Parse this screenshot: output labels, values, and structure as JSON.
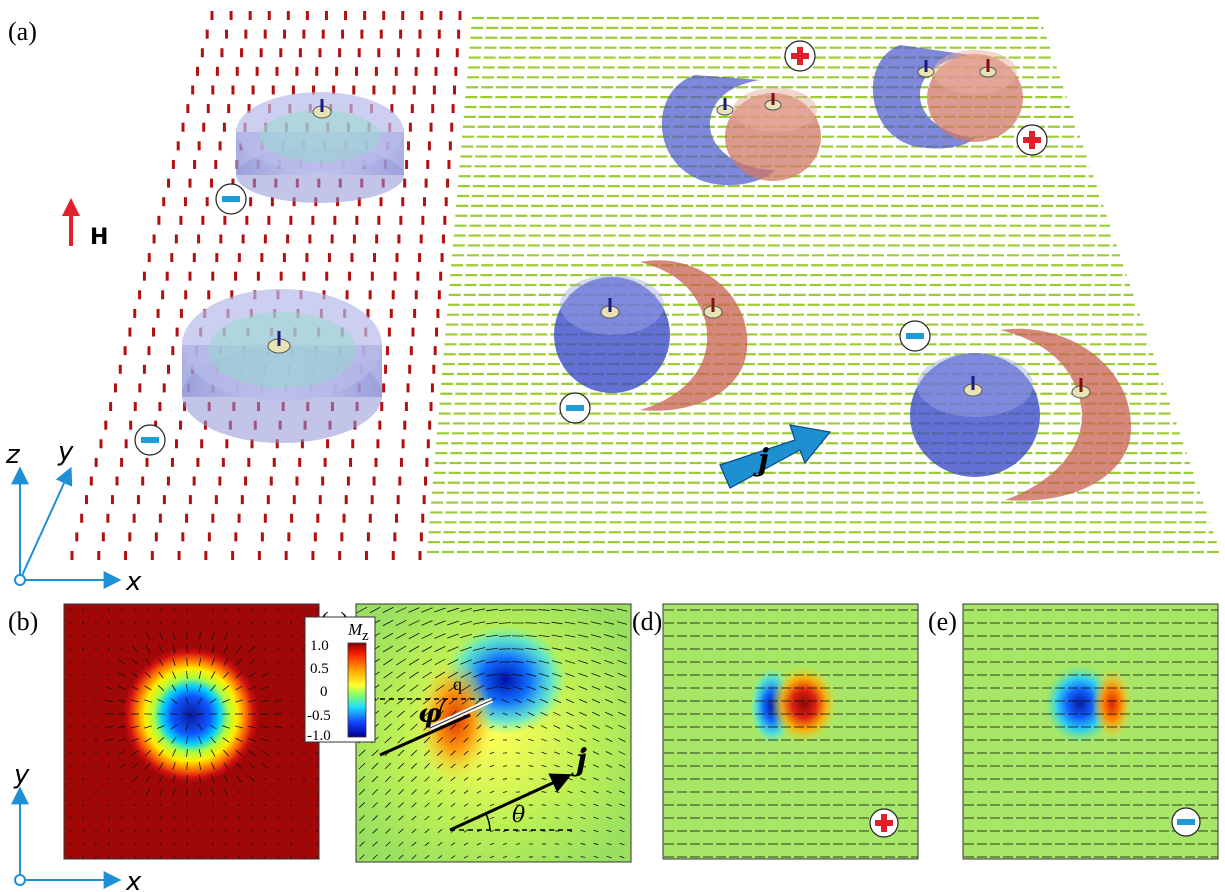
{
  "panels": {
    "a": "(a)",
    "b": "(b)",
    "c": "(c)",
    "d": "(d)",
    "e": "(e)"
  },
  "field_label": "H",
  "current_label": "j",
  "axes": {
    "x": "x",
    "y": "y",
    "z": "z"
  },
  "angles": {
    "phi": "φ",
    "theta": "θ",
    "q": "q"
  },
  "colorbar": {
    "title": "M",
    "title_sub": "z",
    "ticks": [
      "1.0",
      "0.5",
      "0",
      "-0.5",
      "-1.0"
    ]
  },
  "charges": {
    "plus": "+",
    "minus": "−"
  },
  "colors": {
    "red_arrow": "#b01010",
    "green_arrow": "#9acd32",
    "blue_core": "#2233cc",
    "red_core": "#cc3311",
    "axis_blue": "#1e90d8",
    "current_arrow": "#1e8fd0",
    "plus_red": "#e0202a",
    "minus_blue": "#1e9bd7"
  }
}
